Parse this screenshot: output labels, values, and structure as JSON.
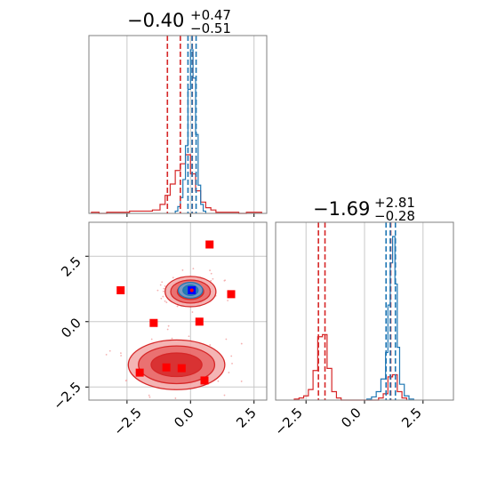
{
  "colors": {
    "red": "#d62728",
    "blue": "#1f77b4",
    "grid": "#c8c8c8",
    "axis": "#7f7f7f",
    "marker": "#ff0000"
  },
  "chart_data": {
    "type": "corner",
    "panels": [
      {
        "name": "param-1-marginal",
        "type": "histogram",
        "title": {
          "value": "−0.40",
          "upper": "+0.47",
          "lower": "−0.51"
        },
        "xlim": [
          -4.0,
          3.0
        ],
        "grid": true,
        "quantile_lines": {
          "red": [
            -0.91,
            -0.4,
            0.07
          ],
          "blue": [
            -0.1,
            0.06,
            0.22
          ]
        },
        "series": [
          {
            "color": "red",
            "bin_edges": [
              -3.9,
              -3.6,
              -3.3,
              -3.0,
              -2.7,
              -2.4,
              -2.1,
              -1.8,
              -1.5,
              -1.2,
              -1.0,
              -0.8,
              -0.6,
              -0.4,
              -0.2,
              0.0,
              0.2,
              0.4,
              0.6,
              0.8,
              1.0,
              1.3,
              1.6,
              1.9,
              2.2,
              2.5,
              2.8
            ],
            "counts": [
              1,
              0,
              1,
              1,
              1,
              2,
              2,
              2,
              3,
              8,
              16,
              26,
              38,
              44,
              52,
              35,
              20,
              10,
              5,
              3,
              1,
              1,
              1,
              0,
              1,
              1
            ]
          },
          {
            "color": "blue",
            "bin_edges": [
              -0.6,
              -0.5,
              -0.4,
              -0.3,
              -0.2,
              -0.1,
              0.0,
              0.1,
              0.2,
              0.3,
              0.4,
              0.5,
              0.6
            ],
            "counts": [
              2,
              6,
              14,
              30,
              60,
              110,
              145,
              120,
              70,
              25,
              8,
              2
            ]
          }
        ]
      },
      {
        "name": "joint-contour",
        "type": "contour",
        "xlim": [
          -4.0,
          3.0
        ],
        "ylim": [
          -3.0,
          3.8
        ],
        "xticks": [
          "−2.5",
          "0.0",
          "2.5"
        ],
        "yticks": [
          "−2.5",
          "0.0",
          "2.5"
        ],
        "xtick_values": [
          -2.5,
          0.0,
          2.5
        ],
        "ytick_values": [
          -2.5,
          0.0,
          2.5
        ],
        "grid": true,
        "red_modes": [
          {
            "cx": 0.0,
            "cy": 1.15,
            "rx": [
              1.0,
              0.78,
              0.52
            ],
            "ry": [
              0.58,
              0.44,
              0.3
            ]
          },
          {
            "cx": -0.55,
            "cy": -1.65,
            "rx": [
              1.9,
              1.5,
              1.0
            ],
            "ry": [
              0.95,
              0.72,
              0.45
            ]
          }
        ],
        "blue_mode": {
          "cx": 0.0,
          "cy": 1.2,
          "rx": [
            0.48,
            0.3
          ],
          "ry": [
            0.3,
            0.2
          ]
        },
        "square_markers": [
          [
            0.75,
            2.95
          ],
          [
            -2.75,
            1.2
          ],
          [
            1.6,
            1.05
          ],
          [
            -1.45,
            -0.05
          ],
          [
            0.35,
            0.0
          ],
          [
            -2.0,
            -1.95
          ],
          [
            -0.95,
            -1.75
          ],
          [
            -0.35,
            -1.78
          ],
          [
            0.55,
            -2.25
          ]
        ],
        "blue_marker": [
          0.05,
          1.2
        ],
        "truth_point": [
          0.05,
          1.2
        ]
      },
      {
        "name": "param-2-marginal",
        "type": "histogram",
        "title": {
          "value": "−1.69",
          "upper": "+2.81",
          "lower": "−0.28"
        },
        "xlim": [
          -3.8,
          3.8
        ],
        "xticks": [
          "−2.5",
          "0.0",
          "2.5"
        ],
        "xtick_values": [
          -2.5,
          0.0,
          2.5
        ],
        "grid": true,
        "quantile_lines": {
          "red": [
            -1.97,
            -1.69,
            1.12
          ],
          "blue": [
            0.92,
            1.1,
            1.32
          ]
        },
        "series": [
          {
            "color": "red",
            "bin_edges": [
              -3.0,
              -2.8,
              -2.6,
              -2.4,
              -2.2,
              -2.0,
              -1.8,
              -1.6,
              -1.4,
              -1.2,
              -1.0,
              0.6,
              0.8,
              1.0,
              1.2,
              1.4,
              1.6,
              1.8
            ],
            "counts": [
              1,
              2,
              4,
              10,
              28,
              60,
              62,
              30,
              8,
              2,
              0,
              2,
              6,
              22,
              24,
              8,
              2
            ]
          },
          {
            "color": "blue",
            "bin_edges": [
              0.1,
              0.3,
              0.5,
              0.7,
              0.9,
              1.0,
              1.1,
              1.2,
              1.3,
              1.4,
              1.5,
              1.7,
              1.9,
              2.1
            ],
            "counts": [
              1,
              3,
              8,
              20,
              45,
              90,
              130,
              155,
              110,
              50,
              15,
              4,
              1
            ]
          }
        ]
      }
    ]
  }
}
